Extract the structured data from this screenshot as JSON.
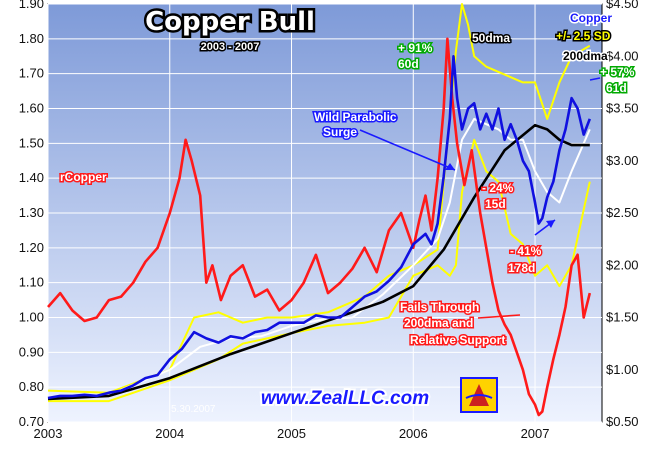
{
  "chart_data": {
    "type": "line",
    "title": "Copper Bull",
    "subtitle": "2003 - 2007",
    "x_ticks": [
      "2003",
      "2004",
      "2005",
      "2006",
      "2007"
    ],
    "y_left_ticks": [
      "0.70",
      "0.80",
      "0.90",
      "1.00",
      "1.10",
      "1.20",
      "1.30",
      "1.40",
      "1.50",
      "1.60",
      "1.70",
      "1.80",
      "1.90"
    ],
    "y_right_ticks": [
      "$0.50",
      "$1.00",
      "$1.50",
      "$2.00",
      "$2.50",
      "$3.00",
      "$3.50",
      "$4.00",
      "$4.50"
    ],
    "y_left_range": [
      0.7,
      1.9
    ],
    "y_right_range": [
      0.5,
      4.5
    ],
    "x_range": [
      2003.0,
      2007.55
    ],
    "series": [
      {
        "name": "rCopper",
        "axis": "left",
        "color": "#ff1a1a",
        "x": [
          2003.0,
          2003.1,
          2003.2,
          2003.3,
          2003.4,
          2003.5,
          2003.6,
          2003.7,
          2003.8,
          2003.9,
          2004.0,
          2004.08,
          2004.13,
          2004.18,
          2004.25,
          2004.3,
          2004.35,
          2004.42,
          2004.5,
          2004.6,
          2004.7,
          2004.8,
          2004.9,
          2005.0,
          2005.1,
          2005.2,
          2005.3,
          2005.4,
          2005.5,
          2005.6,
          2005.7,
          2005.8,
          2005.9,
          2006.0,
          2006.05,
          2006.1,
          2006.15,
          2006.2,
          2006.25,
          2006.28,
          2006.32,
          2006.36,
          2006.42,
          2006.48,
          2006.55,
          2006.6,
          2006.65,
          2006.7,
          2006.75,
          2006.8,
          2006.85,
          2006.9,
          2006.95,
          2007.0,
          2007.03,
          2007.06,
          2007.1,
          2007.15,
          2007.2,
          2007.25,
          2007.3,
          2007.35,
          2007.4,
          2007.45
        ],
        "values": [
          1.03,
          1.07,
          1.02,
          0.99,
          1.0,
          1.05,
          1.06,
          1.1,
          1.16,
          1.2,
          1.3,
          1.4,
          1.51,
          1.45,
          1.35,
          1.1,
          1.15,
          1.05,
          1.12,
          1.15,
          1.06,
          1.08,
          1.02,
          1.05,
          1.1,
          1.18,
          1.07,
          1.1,
          1.14,
          1.2,
          1.13,
          1.25,
          1.3,
          1.2,
          1.28,
          1.35,
          1.25,
          1.4,
          1.6,
          1.8,
          1.63,
          1.5,
          1.38,
          1.48,
          1.3,
          1.2,
          1.1,
          1.02,
          0.98,
          0.95,
          0.9,
          0.85,
          0.78,
          0.75,
          0.72,
          0.73,
          0.8,
          0.88,
          0.95,
          1.03,
          1.15,
          1.18,
          1.0,
          1.07
        ]
      },
      {
        "name": "Copper",
        "axis": "right",
        "color": "#1010e0",
        "x": [
          2003.0,
          2003.1,
          2003.2,
          2003.3,
          2003.4,
          2003.5,
          2003.6,
          2003.7,
          2003.8,
          2003.9,
          2004.0,
          2004.1,
          2004.2,
          2004.3,
          2004.4,
          2004.5,
          2004.6,
          2004.7,
          2004.8,
          2004.9,
          2005.0,
          2005.1,
          2005.2,
          2005.3,
          2005.4,
          2005.5,
          2005.6,
          2005.7,
          2005.8,
          2005.9,
          2006.0,
          2006.05,
          2006.1,
          2006.15,
          2006.2,
          2006.25,
          2006.3,
          2006.33,
          2006.36,
          2006.4,
          2006.45,
          2006.5,
          2006.55,
          2006.6,
          2006.65,
          2006.7,
          2006.75,
          2006.8,
          2006.85,
          2006.9,
          2006.95,
          2007.0,
          2007.03,
          2007.06,
          2007.1,
          2007.15,
          2007.2,
          2007.25,
          2007.3,
          2007.35,
          2007.4,
          2007.45
        ],
        "values": [
          0.73,
          0.75,
          0.75,
          0.76,
          0.75,
          0.78,
          0.8,
          0.85,
          0.92,
          0.95,
          1.1,
          1.2,
          1.36,
          1.3,
          1.26,
          1.32,
          1.3,
          1.36,
          1.38,
          1.45,
          1.45,
          1.45,
          1.52,
          1.5,
          1.5,
          1.6,
          1.7,
          1.75,
          1.85,
          1.98,
          2.2,
          2.25,
          2.3,
          2.2,
          2.4,
          2.85,
          3.4,
          4.0,
          3.6,
          3.3,
          3.5,
          3.55,
          3.3,
          3.45,
          3.3,
          3.5,
          3.2,
          3.35,
          3.2,
          3.0,
          2.9,
          2.6,
          2.4,
          2.45,
          2.65,
          2.8,
          3.1,
          3.3,
          3.6,
          3.5,
          3.25,
          3.4
        ]
      },
      {
        "name": "50dma",
        "axis": "right",
        "color": "#ffffff",
        "x": [
          2003.0,
          2003.5,
          2004.0,
          2004.25,
          2004.5,
          2004.75,
          2005.0,
          2005.25,
          2005.5,
          2005.75,
          2006.0,
          2006.2,
          2006.3,
          2006.4,
          2006.5,
          2006.6,
          2006.7,
          2006.8,
          2006.9,
          2007.0,
          2007.1,
          2007.2,
          2007.3,
          2007.45
        ],
        "values": [
          0.72,
          0.76,
          1.0,
          1.22,
          1.3,
          1.32,
          1.42,
          1.48,
          1.5,
          1.72,
          2.0,
          2.25,
          2.6,
          3.2,
          3.4,
          3.35,
          3.3,
          3.2,
          3.2,
          2.9,
          2.7,
          2.6,
          2.9,
          3.3
        ]
      },
      {
        "name": "200dma",
        "axis": "right",
        "color": "#000000",
        "x": [
          2003.0,
          2003.5,
          2004.0,
          2004.5,
          2005.0,
          2005.25,
          2005.5,
          2005.75,
          2006.0,
          2006.25,
          2006.5,
          2006.75,
          2007.0,
          2007.1,
          2007.2,
          2007.3,
          2007.45
        ],
        "values": [
          0.72,
          0.75,
          0.92,
          1.15,
          1.35,
          1.45,
          1.55,
          1.65,
          1.8,
          2.15,
          2.65,
          3.1,
          3.34,
          3.3,
          3.2,
          3.15,
          3.15
        ]
      },
      {
        "name": "+2.5 SD",
        "axis": "right",
        "color": "#ffff00",
        "x": [
          2003.0,
          2003.5,
          2004.0,
          2004.2,
          2004.4,
          2004.6,
          2004.8,
          2005.0,
          2005.3,
          2005.6,
          2005.8,
          2006.0,
          2006.2,
          2006.35,
          2006.4,
          2006.45,
          2006.5,
          2006.6,
          2006.7,
          2006.8,
          2006.9,
          2007.0,
          2007.1,
          2007.2,
          2007.3,
          2007.45
        ],
        "values": [
          0.8,
          0.78,
          1.0,
          1.5,
          1.55,
          1.45,
          1.5,
          1.5,
          1.55,
          1.7,
          1.9,
          2.0,
          2.15,
          4.05,
          4.5,
          4.3,
          4.0,
          3.9,
          3.85,
          3.8,
          3.75,
          3.75,
          3.4,
          3.75,
          4.0,
          4.1
        ]
      },
      {
        "name": "-2.5 SD",
        "axis": "right",
        "color": "#ffff00",
        "x": [
          2003.0,
          2003.5,
          2004.0,
          2004.2,
          2004.4,
          2004.6,
          2004.8,
          2005.0,
          2005.3,
          2005.6,
          2005.8,
          2006.0,
          2006.2,
          2006.3,
          2006.35,
          2006.4,
          2006.5,
          2006.6,
          2006.7,
          2006.8,
          2006.9,
          2007.0,
          2007.1,
          2007.2,
          2007.3,
          2007.45
        ],
        "values": [
          0.7,
          0.7,
          0.9,
          1.0,
          1.1,
          1.25,
          1.3,
          1.35,
          1.42,
          1.45,
          1.5,
          1.9,
          2.0,
          1.9,
          2.0,
          2.7,
          3.2,
          2.9,
          2.8,
          2.3,
          2.2,
          1.9,
          2.0,
          1.8,
          2.0,
          2.8
        ]
      }
    ],
    "annotations": [
      {
        "text": "+ 91%",
        "color": "#ffffff",
        "outline": "#00aa00"
      },
      {
        "text": "60d",
        "color": "#ffffff",
        "outline": "#00aa00"
      },
      {
        "text": "50dma",
        "color": "#ffffff",
        "outline": "#000000"
      },
      {
        "text": "Copper",
        "color": "#1a1aff",
        "outline": "#ffffff"
      },
      {
        "text": "+/- 2.5 SD",
        "color": "#ffff00",
        "outline": "#000000"
      },
      {
        "text": "200dma",
        "color": "#000000",
        "outline": "#ffffff"
      },
      {
        "text": "+ 57%",
        "color": "#ffffff",
        "outline": "#00aa00"
      },
      {
        "text": "61d",
        "color": "#ffffff",
        "outline": "#00aa00"
      },
      {
        "text": "Wild Parabolic",
        "color": "#ffffff",
        "outline": "#1a1aff"
      },
      {
        "text": "Surge",
        "color": "#ffffff",
        "outline": "#1a1aff"
      },
      {
        "text": "- 24%",
        "color": "#ffffff",
        "outline": "#ff1a1a"
      },
      {
        "text": "15d",
        "color": "#ffffff",
        "outline": "#ff1a1a"
      },
      {
        "text": "- 41%",
        "color": "#ffffff",
        "outline": "#ff1a1a"
      },
      {
        "text": "178d",
        "color": "#ffffff",
        "outline": "#ff1a1a"
      },
      {
        "text": "Fails Through",
        "color": "#ffffff",
        "outline": "#ff1a1a"
      },
      {
        "text": "200dma and",
        "color": "#ffffff",
        "outline": "#ff1a1a"
      },
      {
        "text": "Relative Support",
        "color": "#ffffff",
        "outline": "#ff1a1a"
      },
      {
        "text": "rCopper",
        "color": "#ffffff",
        "outline": "#ff1a1a"
      }
    ],
    "website": "www.ZealLLC.com",
    "date_stamp": "5.30.2007",
    "grid": true,
    "background_gradient": [
      "#7e9ad8",
      "#eef3ff"
    ]
  }
}
